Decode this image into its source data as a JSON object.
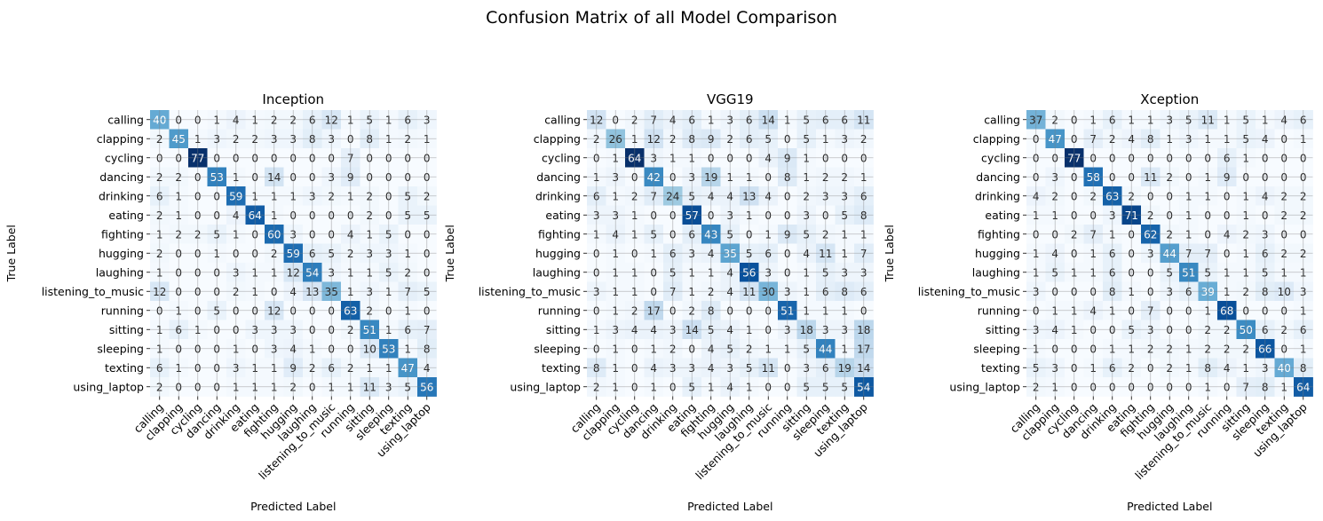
{
  "figure": {
    "title": "Confusion Matrix of all Model Comparison"
  },
  "chart_data": [
    {
      "type": "heatmap",
      "title": "Inception",
      "xlabel": "Predicted Label",
      "ylabel": "True Label",
      "colormap": "Blues",
      "grid": true,
      "labels": [
        "calling",
        "clapping",
        "cycling",
        "dancing",
        "drinking",
        "eating",
        "fighting",
        "hugging",
        "laughing",
        "listening_to_music",
        "running",
        "sitting",
        "sleeping",
        "texting",
        "using_laptop"
      ],
      "matrix": [
        [
          40,
          0,
          0,
          1,
          4,
          1,
          2,
          2,
          6,
          12,
          1,
          5,
          1,
          6,
          3
        ],
        [
          2,
          45,
          1,
          3,
          2,
          2,
          3,
          3,
          8,
          3,
          0,
          8,
          1,
          2,
          1
        ],
        [
          0,
          0,
          77,
          0,
          0,
          0,
          0,
          0,
          0,
          0,
          7,
          0,
          0,
          0,
          0
        ],
        [
          2,
          2,
          0,
          53,
          1,
          0,
          14,
          0,
          0,
          3,
          9,
          0,
          0,
          0,
          0
        ],
        [
          6,
          1,
          0,
          0,
          59,
          1,
          1,
          1,
          3,
          2,
          1,
          2,
          0,
          5,
          2
        ],
        [
          2,
          1,
          0,
          0,
          4,
          64,
          1,
          0,
          0,
          0,
          0,
          2,
          0,
          5,
          5
        ],
        [
          1,
          2,
          2,
          5,
          1,
          0,
          60,
          3,
          0,
          0,
          4,
          1,
          5,
          0,
          0
        ],
        [
          2,
          0,
          0,
          1,
          0,
          0,
          2,
          59,
          6,
          5,
          2,
          3,
          3,
          1,
          0
        ],
        [
          1,
          0,
          0,
          0,
          3,
          1,
          1,
          12,
          54,
          3,
          1,
          1,
          5,
          2,
          0
        ],
        [
          12,
          0,
          0,
          0,
          2,
          1,
          0,
          4,
          13,
          35,
          1,
          3,
          1,
          7,
          5
        ],
        [
          0,
          1,
          0,
          5,
          0,
          0,
          12,
          0,
          0,
          0,
          63,
          2,
          0,
          1,
          0
        ],
        [
          1,
          6,
          1,
          0,
          0,
          3,
          3,
          3,
          0,
          0,
          2,
          51,
          1,
          6,
          7
        ],
        [
          1,
          0,
          0,
          0,
          1,
          0,
          3,
          4,
          1,
          0,
          0,
          10,
          53,
          1,
          8
        ],
        [
          6,
          1,
          0,
          0,
          3,
          1,
          1,
          9,
          2,
          6,
          2,
          1,
          1,
          47,
          4
        ],
        [
          2,
          0,
          0,
          0,
          1,
          1,
          1,
          2,
          0,
          1,
          1,
          11,
          3,
          5,
          56
        ]
      ]
    },
    {
      "type": "heatmap",
      "title": "VGG19",
      "xlabel": "Predicted Label",
      "ylabel": "True Label",
      "colormap": "Blues",
      "grid": true,
      "labels": [
        "calling",
        "clapping",
        "cycling",
        "dancing",
        "drinking",
        "eating",
        "fighting",
        "hugging",
        "laughing",
        "listening_to_music",
        "running",
        "sitting",
        "sleeping",
        "texting",
        "using_laptop"
      ],
      "matrix": [
        [
          12,
          0,
          2,
          7,
          4,
          6,
          1,
          3,
          6,
          14,
          1,
          5,
          6,
          6,
          11
        ],
        [
          2,
          26,
          1,
          12,
          2,
          8,
          9,
          2,
          6,
          5,
          0,
          5,
          1,
          3,
          2
        ],
        [
          0,
          1,
          64,
          3,
          1,
          1,
          0,
          0,
          0,
          4,
          9,
          1,
          0,
          0,
          0
        ],
        [
          1,
          3,
          0,
          42,
          0,
          3,
          19,
          1,
          1,
          0,
          8,
          1,
          2,
          2,
          1
        ],
        [
          6,
          1,
          2,
          7,
          24,
          5,
          4,
          4,
          13,
          4,
          0,
          2,
          3,
          3,
          6
        ],
        [
          3,
          3,
          1,
          0,
          0,
          57,
          0,
          3,
          1,
          0,
          0,
          3,
          0,
          5,
          8
        ],
        [
          1,
          4,
          1,
          5,
          0,
          6,
          43,
          5,
          0,
          1,
          9,
          5,
          2,
          1,
          1
        ],
        [
          0,
          1,
          0,
          1,
          6,
          3,
          4,
          35,
          5,
          6,
          0,
          4,
          11,
          1,
          7
        ],
        [
          0,
          1,
          1,
          0,
          5,
          1,
          1,
          4,
          56,
          3,
          0,
          1,
          5,
          3,
          3
        ],
        [
          3,
          1,
          1,
          0,
          7,
          1,
          2,
          4,
          11,
          30,
          3,
          1,
          6,
          8,
          6
        ],
        [
          0,
          1,
          2,
          17,
          0,
          2,
          8,
          0,
          0,
          0,
          51,
          1,
          1,
          1,
          0
        ],
        [
          1,
          3,
          4,
          4,
          3,
          14,
          5,
          4,
          1,
          0,
          3,
          18,
          3,
          3,
          18
        ],
        [
          0,
          1,
          0,
          1,
          2,
          0,
          4,
          5,
          2,
          1,
          1,
          5,
          44,
          1,
          17
        ],
        [
          8,
          1,
          0,
          4,
          3,
          3,
          4,
          3,
          5,
          11,
          0,
          3,
          6,
          19,
          14
        ],
        [
          2,
          1,
          0,
          1,
          0,
          5,
          1,
          4,
          1,
          0,
          0,
          5,
          5,
          5,
          54
        ]
      ]
    },
    {
      "type": "heatmap",
      "title": "Xception",
      "xlabel": "Predicted Label",
      "ylabel": "True Label",
      "colormap": "Blues",
      "grid": true,
      "labels": [
        "calling",
        "clapping",
        "cycling",
        "dancing",
        "drinking",
        "eating",
        "fighting",
        "hugging",
        "laughing",
        "listening_to_music",
        "running",
        "sitting",
        "sleeping",
        "texting",
        "using_laptop"
      ],
      "matrix": [
        [
          37,
          2,
          0,
          1,
          6,
          1,
          1,
          3,
          5,
          11,
          1,
          5,
          1,
          4,
          6
        ],
        [
          0,
          47,
          0,
          7,
          2,
          4,
          8,
          1,
          3,
          1,
          1,
          5,
          4,
          0,
          1
        ],
        [
          0,
          0,
          77,
          0,
          0,
          0,
          0,
          0,
          0,
          0,
          6,
          1,
          0,
          0,
          0
        ],
        [
          0,
          3,
          0,
          58,
          0,
          0,
          11,
          2,
          0,
          1,
          9,
          0,
          0,
          0,
          0
        ],
        [
          4,
          2,
          0,
          2,
          63,
          2,
          0,
          0,
          1,
          1,
          0,
          1,
          4,
          2,
          2
        ],
        [
          1,
          1,
          0,
          0,
          3,
          71,
          2,
          0,
          1,
          0,
          0,
          1,
          0,
          2,
          2
        ],
        [
          0,
          0,
          2,
          7,
          1,
          0,
          62,
          2,
          1,
          0,
          4,
          2,
          3,
          0,
          0
        ],
        [
          1,
          4,
          0,
          1,
          6,
          0,
          3,
          44,
          7,
          7,
          0,
          1,
          6,
          2,
          2
        ],
        [
          1,
          5,
          1,
          1,
          6,
          0,
          0,
          5,
          51,
          5,
          1,
          1,
          5,
          1,
          1
        ],
        [
          3,
          0,
          0,
          0,
          8,
          1,
          0,
          3,
          6,
          39,
          1,
          2,
          8,
          10,
          3
        ],
        [
          0,
          1,
          1,
          4,
          1,
          0,
          7,
          0,
          0,
          1,
          68,
          0,
          0,
          0,
          1
        ],
        [
          3,
          4,
          1,
          0,
          0,
          5,
          3,
          0,
          0,
          2,
          2,
          50,
          6,
          2,
          6
        ],
        [
          1,
          0,
          0,
          0,
          1,
          1,
          2,
          2,
          1,
          2,
          2,
          2,
          66,
          0,
          1
        ],
        [
          5,
          3,
          0,
          1,
          6,
          2,
          0,
          2,
          1,
          8,
          4,
          1,
          3,
          40,
          8
        ],
        [
          2,
          1,
          0,
          0,
          0,
          0,
          0,
          0,
          0,
          1,
          0,
          7,
          8,
          1,
          64
        ]
      ]
    }
  ]
}
